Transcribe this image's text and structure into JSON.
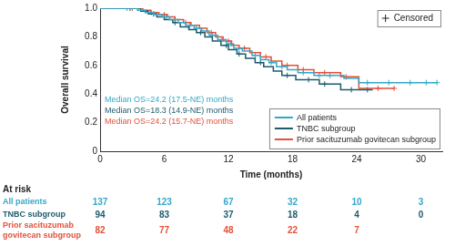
{
  "chart_data": {
    "type": "line",
    "x_label": "Time (months)",
    "y_label": "Overall survival",
    "xlim": [
      0,
      32
    ],
    "xticks": [
      0,
      6,
      12,
      18,
      24,
      30
    ],
    "ylim": [
      0,
      1
    ],
    "yticks": [
      0,
      0.2,
      0.4,
      0.6,
      0.8,
      {
        "value": 1,
        "label": "1.0"
      }
    ],
    "grid": false,
    "legend": "lower right",
    "censor_label": "Censored",
    "at_risk_label": "At risk",
    "series": [
      {
        "name": "All patients",
        "color": "#35a8c9",
        "marker": "cross",
        "x": [
          0,
          3.5,
          4.2,
          5,
          5.8,
          6.5,
          7.3,
          8,
          8.8,
          9.5,
          10.2,
          11,
          11.8,
          12.5,
          13.3,
          14.2,
          15,
          15.8,
          16.5,
          17.5,
          18.5,
          20,
          22.8,
          24.2,
          31.5
        ],
        "values": [
          1,
          0.985,
          0.97,
          0.955,
          0.94,
          0.92,
          0.9,
          0.88,
          0.86,
          0.84,
          0.81,
          0.78,
          0.75,
          0.72,
          0.7,
          0.67,
          0.64,
          0.62,
          0.59,
          0.57,
          0.55,
          0.53,
          0.51,
          0.48,
          0.48
        ],
        "censored_x": [
          2.5,
          4.8,
          6.2,
          7,
          8.4,
          9,
          10.5,
          11.4,
          12.2,
          13,
          14.5,
          16,
          17,
          19,
          20.5,
          21.5,
          25,
          27,
          29,
          30.5,
          31.5
        ],
        "censored_values": [
          1,
          0.97,
          0.94,
          0.92,
          0.88,
          0.86,
          0.81,
          0.78,
          0.75,
          0.72,
          0.67,
          0.62,
          0.59,
          0.55,
          0.53,
          0.53,
          0.48,
          0.48,
          0.48,
          0.48,
          0.48
        ],
        "median_label": "Median OS=24.2 (17.5-NE) months",
        "at_risk": [
          137,
          123,
          67,
          32,
          10,
          3
        ]
      },
      {
        "name": "TNBC subgroup",
        "color": "#1e5b6c",
        "marker": "cross",
        "x": [
          0,
          3.8,
          4.5,
          5.3,
          6,
          6.8,
          7.5,
          8.3,
          9,
          9.8,
          10.5,
          11.3,
          12,
          12.8,
          13.6,
          14.5,
          15.3,
          16.2,
          17,
          18.3,
          20.5,
          22.5,
          25.5
        ],
        "values": [
          1,
          0.98,
          0.96,
          0.94,
          0.92,
          0.9,
          0.87,
          0.85,
          0.83,
          0.8,
          0.77,
          0.74,
          0.71,
          0.68,
          0.65,
          0.62,
          0.59,
          0.56,
          0.53,
          0.5,
          0.47,
          0.43,
          0.43
        ],
        "censored_x": [
          2.8,
          5,
          7,
          9.4,
          11.8,
          13,
          15,
          17.5,
          19.5,
          21,
          23.5,
          25
        ],
        "censored_values": [
          1,
          0.96,
          0.9,
          0.83,
          0.74,
          0.68,
          0.62,
          0.53,
          0.5,
          0.47,
          0.43,
          0.43
        ],
        "median_label": "Median OS=18.3 (14.9-NE) months",
        "at_risk": [
          94,
          83,
          37,
          18,
          4,
          0
        ]
      },
      {
        "name": "Prior sacituzumab govitecan subgroup",
        "color": "#e4513b",
        "marker": "cross",
        "x": [
          0,
          4,
          4.7,
          5.5,
          6.3,
          7,
          7.8,
          8.5,
          9.3,
          10,
          10.8,
          11.5,
          12.3,
          13,
          14,
          15,
          16,
          17,
          18.5,
          20,
          22.5,
          24.2,
          27.5
        ],
        "values": [
          1,
          0.985,
          0.97,
          0.955,
          0.94,
          0.92,
          0.9,
          0.88,
          0.86,
          0.83,
          0.8,
          0.77,
          0.74,
          0.72,
          0.69,
          0.66,
          0.63,
          0.6,
          0.57,
          0.55,
          0.52,
          0.44,
          0.44
        ],
        "censored_x": [
          3,
          6,
          8,
          10.4,
          12,
          13.5,
          15.5,
          17.5,
          19,
          21,
          23,
          26,
          27.5
        ],
        "censored_values": [
          1,
          0.955,
          0.9,
          0.83,
          0.77,
          0.72,
          0.66,
          0.6,
          0.57,
          0.55,
          0.52,
          0.44,
          0.44
        ],
        "median_label": "Median OS=24.2 (15.7-NE) months",
        "at_risk": [
          82,
          77,
          48,
          22,
          7,
          null
        ]
      }
    ]
  }
}
